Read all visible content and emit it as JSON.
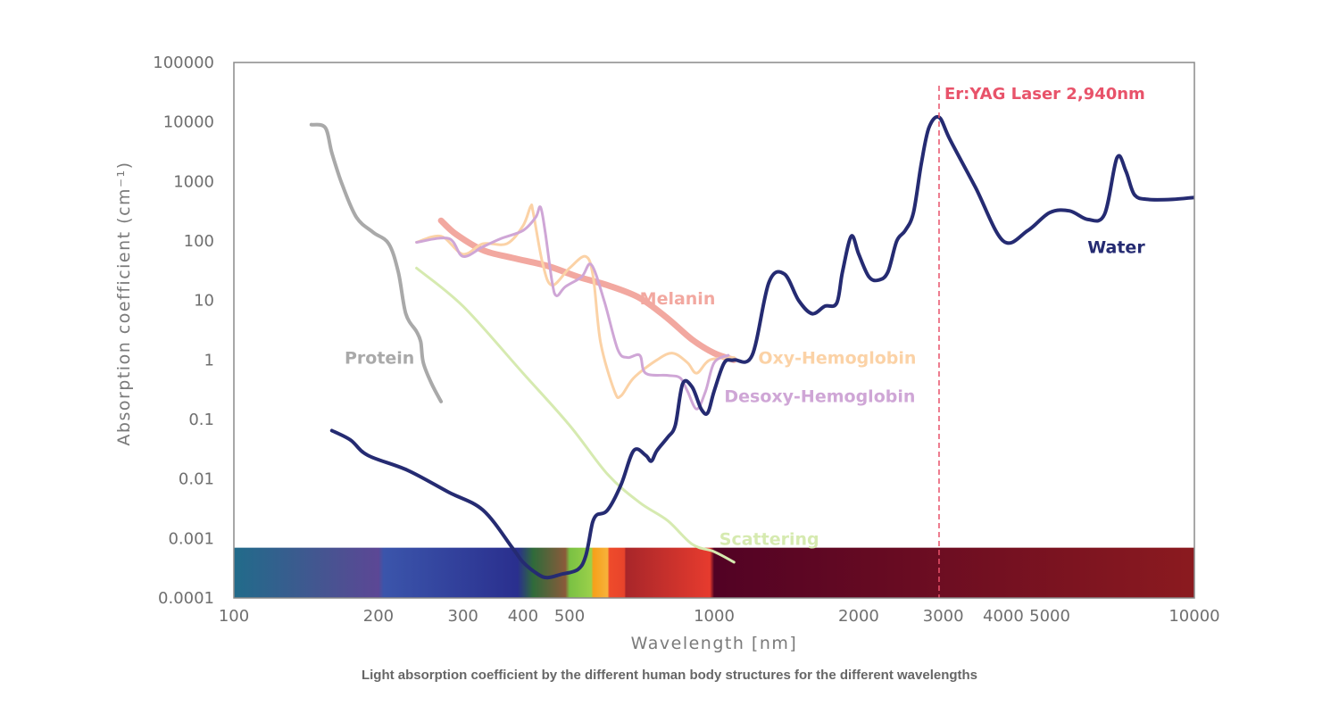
{
  "chart_data": {
    "type": "line",
    "title": "",
    "caption": "Light absorption coefficient by the different human body structures for the different wavelengths",
    "xlabel": "Wavelength [nm]",
    "ylabel": "Absorption coefficient (cm⁻¹)",
    "x_scale": "log",
    "y_scale": "log",
    "xlim": [
      100,
      10000
    ],
    "ylim": [
      0.0001,
      100000
    ],
    "grid": false,
    "x_ticks": [
      {
        "value": 100,
        "label": "100"
      },
      {
        "value": 200,
        "label": "200"
      },
      {
        "value": 300,
        "label": "300"
      },
      {
        "value": 400,
        "label": "400"
      },
      {
        "value": 500,
        "label": "500"
      },
      {
        "value": 1000,
        "label": "1000"
      },
      {
        "value": 2000,
        "label": "2000"
      },
      {
        "value": 3000,
        "label": "3000"
      },
      {
        "value": 4000,
        "label": "4000"
      },
      {
        "value": 5000,
        "label": "5000"
      },
      {
        "value": 10000,
        "label": "10000"
      }
    ],
    "y_ticks": [
      {
        "value": 100000,
        "label": "100000"
      },
      {
        "value": 10000,
        "label": "10000"
      },
      {
        "value": 1000,
        "label": "1000"
      },
      {
        "value": 100,
        "label": "100"
      },
      {
        "value": 10,
        "label": "10"
      },
      {
        "value": 1,
        "label": "1"
      },
      {
        "value": 0.1,
        "label": "0.1"
      },
      {
        "value": 0.01,
        "label": "0.01"
      },
      {
        "value": 0.001,
        "label": "0.001"
      },
      {
        "value": 0.0001,
        "label": "0.0001"
      }
    ],
    "annotations": [
      {
        "text": "Er:YAG Laser 2,940nm",
        "x": 2940,
        "color": "#e8536a"
      }
    ],
    "spectrum_bar": {
      "y_range": [
        0.0001,
        0.0007
      ],
      "stops": [
        {
          "x": 100,
          "color": "#216b8a"
        },
        {
          "x": 200,
          "color": "#5c4795"
        },
        {
          "x": 205,
          "color": "#3b55ab"
        },
        {
          "x": 390,
          "color": "#2a2f8e"
        },
        {
          "x": 420,
          "color": "#2f6b3a"
        },
        {
          "x": 490,
          "color": "#8a5a3a"
        },
        {
          "x": 500,
          "color": "#7ac143"
        },
        {
          "x": 555,
          "color": "#9ad04a"
        },
        {
          "x": 560,
          "color": "#f6a01a"
        },
        {
          "x": 600,
          "color": "#f7b23a"
        },
        {
          "x": 605,
          "color": "#ee4b2b"
        },
        {
          "x": 650,
          "color": "#e8442b"
        },
        {
          "x": 655,
          "color": "#a8262a"
        },
        {
          "x": 980,
          "color": "#e63b2e"
        },
        {
          "x": 1000,
          "color": "#520224"
        },
        {
          "x": 10000,
          "color": "#8b1a1f"
        }
      ]
    },
    "series": [
      {
        "name": "Protein",
        "color": "#a9a9a9",
        "width": 4,
        "label": {
          "x": 170,
          "y": 1.1
        },
        "points": [
          [
            145,
            9000
          ],
          [
            155,
            8000
          ],
          [
            160,
            3000
          ],
          [
            168,
            900
          ],
          [
            180,
            250
          ],
          [
            195,
            140
          ],
          [
            210,
            90
          ],
          [
            220,
            30
          ],
          [
            228,
            6
          ],
          [
            240,
            3
          ],
          [
            245,
            2
          ],
          [
            248,
            0.9
          ],
          [
            258,
            0.4
          ],
          [
            270,
            0.2
          ]
        ]
      },
      {
        "name": "Melanin",
        "color": "#f2a8a0",
        "width": 7,
        "label": {
          "x": 700,
          "y": 11
        },
        "points": [
          [
            270,
            220
          ],
          [
            290,
            130
          ],
          [
            330,
            70
          ],
          [
            380,
            52
          ],
          [
            450,
            38
          ],
          [
            520,
            25
          ],
          [
            600,
            18
          ],
          [
            700,
            11
          ],
          [
            800,
            5
          ],
          [
            900,
            2.2
          ],
          [
            1000,
            1.3
          ],
          [
            1100,
            1.0
          ]
        ]
      },
      {
        "name": "Oxy-Hemoglobin",
        "color": "#fbd2a6",
        "width": 3,
        "label": {
          "x": 1235,
          "y": 1.1
        },
        "points": [
          [
            240,
            95
          ],
          [
            270,
            120
          ],
          [
            300,
            60
          ],
          [
            330,
            90
          ],
          [
            370,
            90
          ],
          [
            400,
            180
          ],
          [
            415,
            380
          ],
          [
            420,
            300
          ],
          [
            440,
            40
          ],
          [
            460,
            18
          ],
          [
            500,
            35
          ],
          [
            540,
            55
          ],
          [
            560,
            25
          ],
          [
            580,
            2
          ],
          [
            620,
            0.3
          ],
          [
            640,
            0.25
          ],
          [
            680,
            0.5
          ],
          [
            760,
            1.0
          ],
          [
            820,
            1.3
          ],
          [
            880,
            0.9
          ],
          [
            920,
            0.6
          ],
          [
            980,
            1.0
          ],
          [
            1100,
            1.1
          ]
        ]
      },
      {
        "name": "Desoxy-Hemoglobin",
        "color": "#cfa6d6",
        "width": 3,
        "label": {
          "x": 1050,
          "y": 0.25
        },
        "points": [
          [
            240,
            95
          ],
          [
            280,
            110
          ],
          [
            300,
            55
          ],
          [
            330,
            80
          ],
          [
            360,
            110
          ],
          [
            400,
            150
          ],
          [
            425,
            250
          ],
          [
            435,
            370
          ],
          [
            445,
            140
          ],
          [
            460,
            20
          ],
          [
            470,
            12
          ],
          [
            490,
            17
          ],
          [
            530,
            25
          ],
          [
            555,
            40
          ],
          [
            590,
            10
          ],
          [
            630,
            1.5
          ],
          [
            660,
            1.1
          ],
          [
            700,
            1.2
          ],
          [
            720,
            0.6
          ],
          [
            800,
            0.55
          ],
          [
            850,
            0.5
          ],
          [
            880,
            0.3
          ],
          [
            920,
            0.15
          ],
          [
            960,
            0.3
          ],
          [
            1000,
            0.9
          ],
          [
            1070,
            1.2
          ]
        ]
      },
      {
        "name": "Scattering",
        "color": "#d6eab0",
        "width": 3,
        "label": {
          "x": 1025,
          "y": 0.001
        },
        "points": [
          [
            240,
            35
          ],
          [
            300,
            8
          ],
          [
            400,
            0.6
          ],
          [
            500,
            0.08
          ],
          [
            600,
            0.012
          ],
          [
            700,
            0.004
          ],
          [
            800,
            0.002
          ],
          [
            900,
            0.0008
          ],
          [
            1000,
            0.0006
          ],
          [
            1100,
            0.0004
          ]
        ]
      },
      {
        "name": "Water",
        "color": "#252b72",
        "width": 4,
        "label": {
          "x": 5990,
          "y": 80
        },
        "points": [
          [
            160,
            0.065
          ],
          [
            175,
            0.045
          ],
          [
            190,
            0.025
          ],
          [
            230,
            0.014
          ],
          [
            280,
            0.006
          ],
          [
            330,
            0.003
          ],
          [
            380,
            0.0007
          ],
          [
            400,
            0.0004
          ],
          [
            430,
            0.00025
          ],
          [
            450,
            0.00022
          ],
          [
            480,
            0.00025
          ],
          [
            520,
            0.0003
          ],
          [
            540,
            0.0005
          ],
          [
            555,
            0.0015
          ],
          [
            560,
            0.002
          ],
          [
            570,
            0.0025
          ],
          [
            600,
            0.003
          ],
          [
            640,
            0.008
          ],
          [
            680,
            0.03
          ],
          [
            720,
            0.025
          ],
          [
            740,
            0.02
          ],
          [
            760,
            0.03
          ],
          [
            800,
            0.05
          ],
          [
            830,
            0.08
          ],
          [
            860,
            0.4
          ],
          [
            900,
            0.35
          ],
          [
            940,
            0.15
          ],
          [
            970,
            0.13
          ],
          [
            1000,
            0.3
          ],
          [
            1050,
            0.9
          ],
          [
            1100,
            1.0
          ],
          [
            1200,
            1.2
          ],
          [
            1300,
            20
          ],
          [
            1400,
            28
          ],
          [
            1500,
            10
          ],
          [
            1600,
            6
          ],
          [
            1700,
            8
          ],
          [
            1800,
            9
          ],
          [
            1850,
            30
          ],
          [
            1930,
            120
          ],
          [
            2000,
            60
          ],
          [
            2100,
            25
          ],
          [
            2200,
            22
          ],
          [
            2300,
            30
          ],
          [
            2400,
            100
          ],
          [
            2500,
            150
          ],
          [
            2600,
            300
          ],
          [
            2700,
            2000
          ],
          [
            2800,
            8000
          ],
          [
            2940,
            12000
          ],
          [
            3100,
            5000
          ],
          [
            3500,
            800
          ],
          [
            4000,
            100
          ],
          [
            4500,
            150
          ],
          [
            5000,
            300
          ],
          [
            5500,
            320
          ],
          [
            6000,
            230
          ],
          [
            6500,
            280
          ],
          [
            6900,
            2500
          ],
          [
            7200,
            1500
          ],
          [
            7500,
            600
          ],
          [
            8000,
            500
          ],
          [
            9000,
            500
          ],
          [
            10000,
            540
          ]
        ]
      }
    ]
  }
}
